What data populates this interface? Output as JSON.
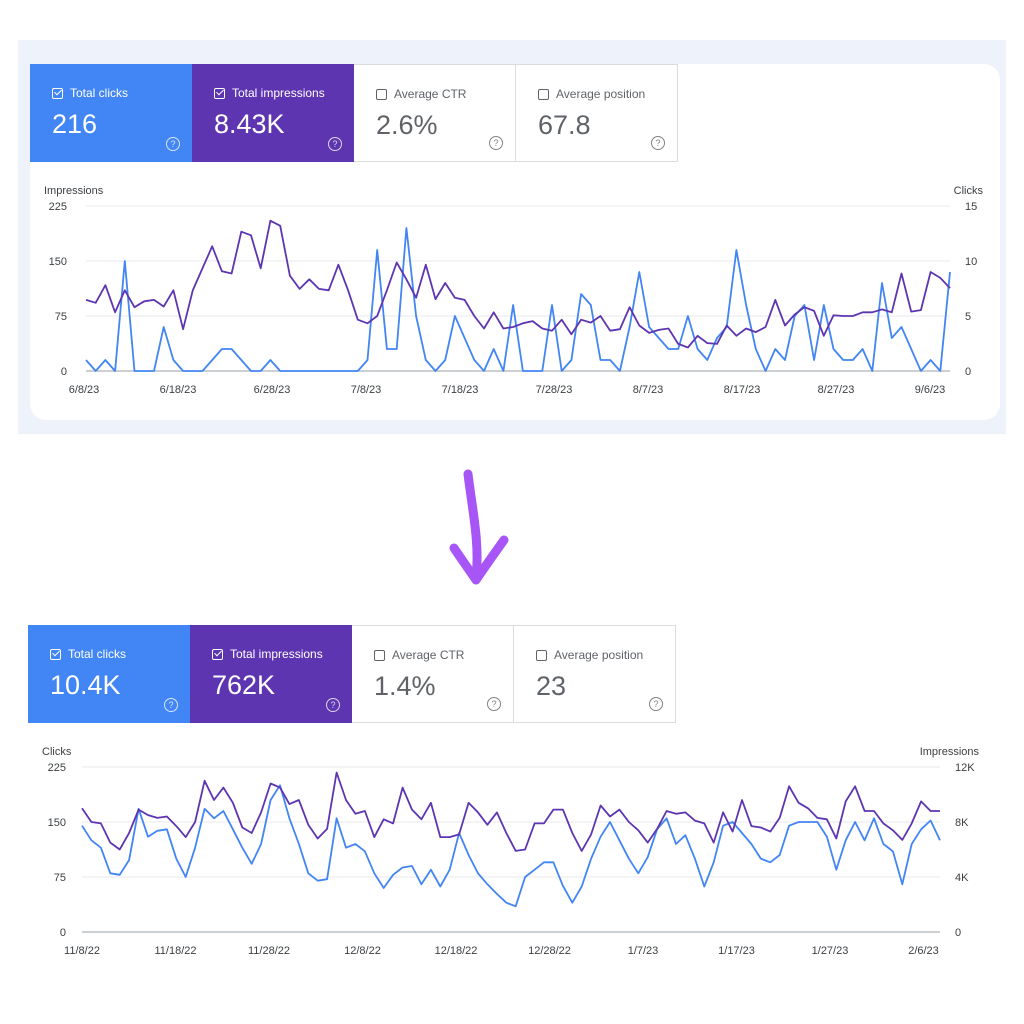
{
  "top": {
    "metrics": [
      {
        "label": "Total clicks",
        "value": "216",
        "checked": true
      },
      {
        "label": "Total impressions",
        "value": "8.43K",
        "checked": true
      },
      {
        "label": "Average CTR",
        "value": "2.6%",
        "checked": false
      },
      {
        "label": "Average position",
        "value": "67.8",
        "checked": false
      }
    ]
  },
  "bottom": {
    "metrics": [
      {
        "label": "Total clicks",
        "value": "10.4K",
        "checked": true
      },
      {
        "label": "Total impressions",
        "value": "762K",
        "checked": true
      },
      {
        "label": "Average CTR",
        "value": "1.4%",
        "checked": false
      },
      {
        "label": "Average position",
        "value": "23",
        "checked": false
      }
    ]
  },
  "colors": {
    "clicks": "#4285f4",
    "impressions": "#5e35b1",
    "arrow": "#a855f7"
  },
  "icons": {
    "help": "help-circle-icon",
    "arrow": "down-arrow-icon"
  },
  "chart_data": [
    {
      "type": "line",
      "left_axis": {
        "label": "Impressions",
        "ticks": [
          "0",
          "75",
          "150",
          "225"
        ],
        "range": [
          0,
          225
        ]
      },
      "right_axis": {
        "label": "Clicks",
        "ticks": [
          "0",
          "5",
          "10",
          "15"
        ],
        "range": [
          0,
          15
        ]
      },
      "x_ticks": [
        "6/8/23",
        "6/18/23",
        "6/28/23",
        "7/8/23",
        "7/18/23",
        "7/28/23",
        "8/7/23",
        "8/17/23",
        "8/27/23",
        "9/6/23"
      ],
      "grid": true,
      "series": [
        {
          "name": "Impressions",
          "axis": "left",
          "values": [
            97,
            93,
            117,
            80,
            110,
            87,
            95,
            97,
            88,
            110,
            57,
            110,
            140,
            170,
            136,
            133,
            190,
            185,
            140,
            205,
            198,
            130,
            112,
            125,
            112,
            110,
            145,
            110,
            70,
            65,
            75,
            110,
            148,
            125,
            100,
            145,
            98,
            120,
            100,
            97,
            75,
            58,
            80,
            58,
            60,
            65,
            68,
            58,
            55,
            70,
            50,
            70,
            66,
            75,
            55,
            57,
            87,
            62,
            52,
            56,
            58,
            37,
            32,
            48,
            38,
            37,
            62,
            48,
            58,
            53,
            60,
            97,
            62,
            77,
            87,
            82,
            48,
            76,
            75,
            75,
            80,
            80,
            84,
            80,
            133,
            81,
            83,
            135,
            127,
            113
          ]
        },
        {
          "name": "Clicks",
          "axis": "right",
          "values": [
            1,
            0,
            1,
            0,
            10,
            0,
            0,
            0,
            4,
            1,
            0,
            0,
            0,
            1,
            2,
            2,
            1,
            0,
            0,
            1,
            0,
            0,
            0,
            0,
            0,
            0,
            0,
            0,
            0,
            1,
            11,
            2,
            2,
            13,
            5,
            1,
            0,
            1,
            5,
            3,
            1,
            0,
            2,
            0,
            6,
            0,
            0,
            0,
            6,
            0,
            1,
            7,
            6,
            1,
            1,
            0,
            4,
            9,
            4,
            3,
            2,
            2,
            5,
            2,
            1,
            3,
            4,
            11,
            6,
            2,
            0,
            2,
            1,
            5,
            6,
            1,
            6,
            2,
            1,
            1,
            2,
            0,
            8,
            3,
            4,
            2,
            0,
            1,
            0,
            9
          ]
        }
      ]
    },
    {
      "type": "line",
      "left_axis": {
        "label": "Clicks",
        "ticks": [
          "0",
          "75",
          "150",
          "225"
        ],
        "range": [
          0,
          225
        ]
      },
      "right_axis": {
        "label": "Impressions",
        "ticks": [
          "0",
          "4K",
          "8K",
          "12K"
        ],
        "range": [
          0,
          12000
        ]
      },
      "x_ticks": [
        "11/8/22",
        "11/18/22",
        "11/28/22",
        "12/8/22",
        "12/18/22",
        "12/28/22",
        "1/7/23",
        "1/17/23",
        "1/27/23",
        "2/6/23"
      ],
      "grid": true,
      "series": [
        {
          "name": "Clicks",
          "axis": "left",
          "values": [
            145,
            125,
            115,
            80,
            78,
            98,
            168,
            130,
            138,
            140,
            100,
            75,
            115,
            168,
            155,
            165,
            140,
            115,
            93,
            120,
            180,
            200,
            155,
            120,
            80,
            70,
            72,
            155,
            115,
            120,
            110,
            80,
            60,
            78,
            88,
            90,
            65,
            85,
            62,
            85,
            135,
            105,
            80,
            65,
            52,
            40,
            35,
            75,
            85,
            95,
            95,
            63,
            40,
            62,
            100,
            130,
            150,
            125,
            100,
            80,
            102,
            140,
            155,
            120,
            132,
            100,
            62,
            95,
            145,
            150,
            135,
            120,
            100,
            95,
            105,
            145,
            150,
            150,
            150,
            130,
            85,
            125,
            150,
            125,
            155,
            120,
            110,
            65,
            120,
            140,
            152,
            125
          ]
        },
        {
          "name": "Impressions",
          "axis": "right",
          "values": [
            9000,
            8000,
            7900,
            6500,
            6000,
            7200,
            8900,
            8500,
            8300,
            8400,
            7700,
            6900,
            8000,
            11000,
            9600,
            10500,
            9400,
            7600,
            7200,
            8700,
            10800,
            10500,
            9300,
            9600,
            7800,
            6800,
            7500,
            11600,
            9600,
            8600,
            8800,
            6900,
            8200,
            7900,
            10500,
            8900,
            8200,
            9400,
            6900,
            6900,
            7100,
            9400,
            8700,
            7800,
            8700,
            7200,
            5900,
            6000,
            7900,
            7900,
            8900,
            8900,
            7200,
            5900,
            7100,
            9200,
            8400,
            8900,
            8000,
            7400,
            6500,
            7500,
            8800,
            8600,
            8700,
            8100,
            7900,
            6500,
            8700,
            7300,
            9600,
            7700,
            7600,
            7300,
            8300,
            10600,
            9400,
            9000,
            8300,
            8200,
            6800,
            9500,
            10600,
            8800,
            8800,
            7900,
            7400,
            6700,
            7900,
            9500,
            8800,
            8800
          ]
        }
      ]
    }
  ]
}
